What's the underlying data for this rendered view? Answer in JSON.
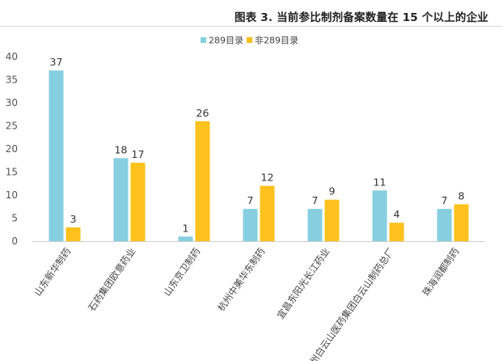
{
  "chart_data": {
    "type": "bar",
    "title": "图表 3. 当前参比制剂备案数量在 15 个以上的企业",
    "categories": [
      "山东新华制药",
      "石药集团欧意药业",
      "山东京卫制药",
      "杭州中美华东制药",
      "宜昌东阳光长江药业",
      "广州白云山医药集团白云山制药总厂",
      "珠海润都制药"
    ],
    "series": [
      {
        "name": "289目录",
        "color": "#86cfe0",
        "values": [
          37,
          18,
          1,
          7,
          7,
          11,
          7
        ]
      },
      {
        "name": "非289目录",
        "color": "#fcc11c",
        "values": [
          3,
          17,
          26,
          12,
          9,
          4,
          8
        ]
      }
    ],
    "ylim": [
      0,
      40
    ],
    "yticks": [
      0,
      5,
      10,
      15,
      20,
      25,
      30,
      35,
      40
    ],
    "grid": false,
    "legend_position": "top-right",
    "xlabel": "",
    "ylabel": ""
  }
}
